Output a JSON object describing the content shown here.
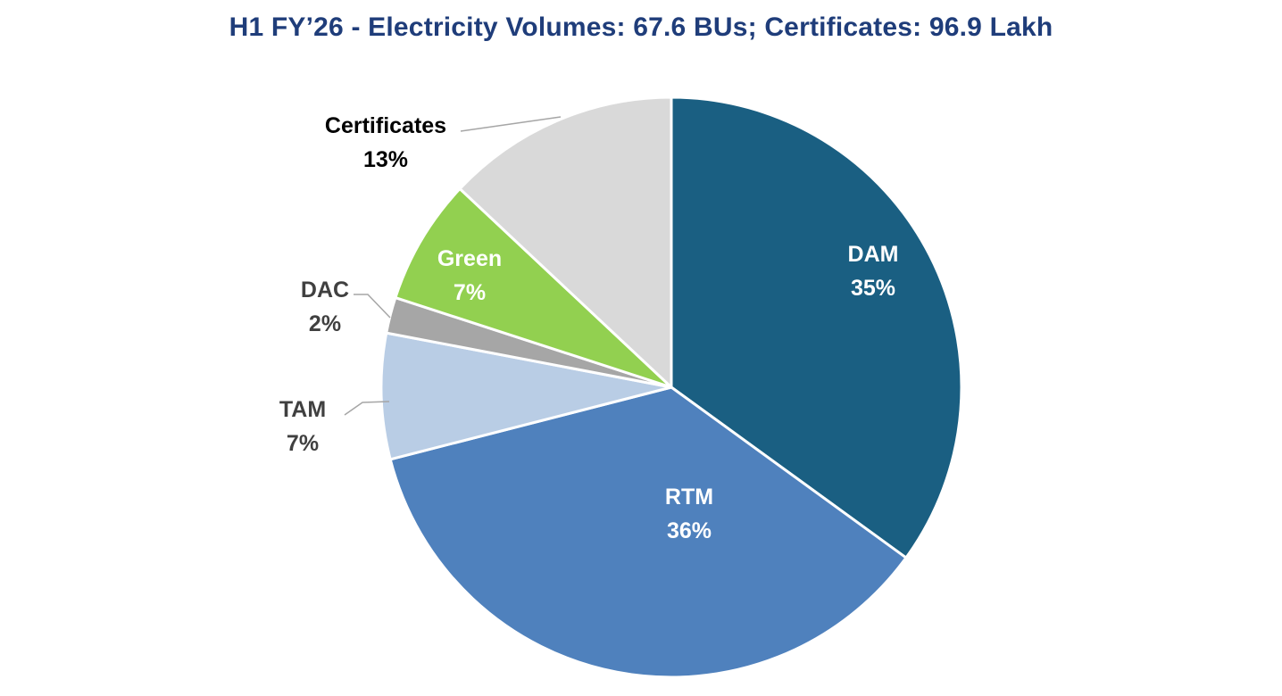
{
  "chart_data": {
    "type": "pie",
    "title": "H1 FY’26 - Electricity Volumes: 67.6 BUs; Certificates: 96.9 Lakh",
    "start_angle_deg": 0,
    "direction": "clockwise",
    "slices": [
      {
        "name": "DAM",
        "value": 35,
        "label": "35%",
        "color": "#1a5f82",
        "label_color": "#ffffff",
        "label_position": "inside"
      },
      {
        "name": "RTM",
        "value": 36,
        "label": "36%",
        "color": "#4f81bd",
        "label_color": "#ffffff",
        "label_position": "inside"
      },
      {
        "name": "TAM",
        "value": 7,
        "label": "7%",
        "color": "#b9cde5",
        "label_color": "#404040",
        "label_position": "outside"
      },
      {
        "name": "DAC",
        "value": 2,
        "label": "2%",
        "color": "#a6a6a6",
        "label_color": "#404040",
        "label_position": "outside"
      },
      {
        "name": "Green",
        "value": 7,
        "label": "7%",
        "color": "#92d050",
        "label_color": "#ffffff",
        "label_position": "inside"
      },
      {
        "name": "Certificates",
        "value": 13,
        "label": "13%",
        "color": "#d9d9d9",
        "label_color": "#000000",
        "label_position": "outside"
      }
    ]
  },
  "colors": {
    "title": "#1f3d7a",
    "slice_border": "#ffffff",
    "leader_line": "#a6a6a6"
  }
}
